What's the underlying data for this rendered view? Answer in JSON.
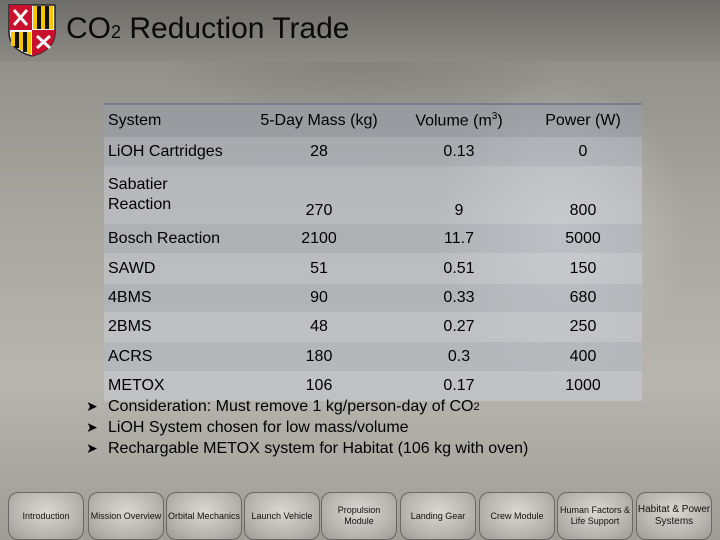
{
  "title": {
    "prefix": "CO",
    "sub": "2",
    "rest": " Reduction Trade"
  },
  "table": {
    "headers": [
      "System",
      "5-Day Mass (kg)",
      "Volume (m",
      "3",
      ")",
      "Power (W)"
    ],
    "rows": [
      {
        "system": "LiOH Cartridges",
        "mass": "28",
        "volume": "0.13",
        "power": "0"
      },
      {
        "system": "Sabatier Reaction",
        "mass": "270",
        "volume": "9",
        "power": "800"
      },
      {
        "system": "Bosch Reaction",
        "mass": "2100",
        "volume": "11.7",
        "power": "5000"
      },
      {
        "system": "SAWD",
        "mass": "51",
        "volume": "0.51",
        "power": "150"
      },
      {
        "system": "4BMS",
        "mass": "90",
        "volume": "0.33",
        "power": "680"
      },
      {
        "system": "2BMS",
        "mass": "48",
        "volume": "0.27",
        "power": "250"
      },
      {
        "system": "ACRS",
        "mass": "180",
        "volume": "0.3",
        "power": "400"
      },
      {
        "system": "METOX",
        "mass": "106",
        "volume": "0.17",
        "power": "1000"
      }
    ]
  },
  "bullets": {
    "b1_text": "Consideration: Must remove 1 kg/person-day of CO",
    "b1_sub": "2",
    "b2_text": "LiOH System chosen for low mass/volume",
    "b3_text": "Rechargable METOX system for Habitat (106 kg with oven)"
  },
  "nav": [
    "Introduction",
    "Mission Overview",
    "Orbital Mechanics",
    "Launch Vehicle",
    "Propulsion Module",
    "Landing Gear",
    "Crew Module",
    "Human Factors & Life Support",
    "Habitat & Power Systems"
  ],
  "colors": {
    "accent": "#6e788c",
    "text": "#000000"
  }
}
